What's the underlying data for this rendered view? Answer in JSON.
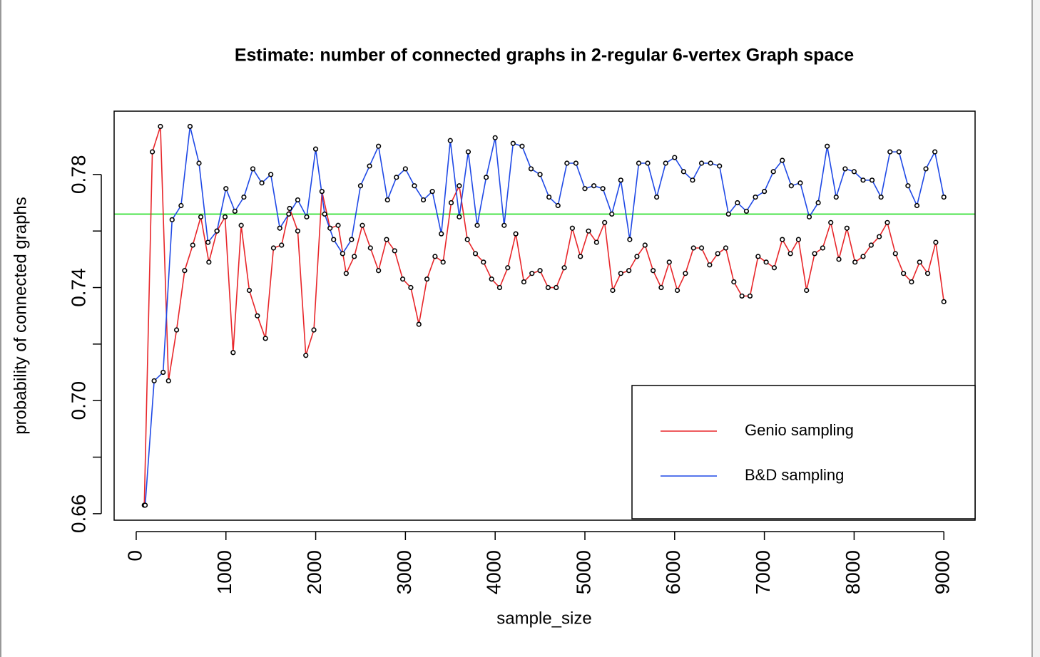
{
  "chart_data": {
    "type": "line",
    "title": "Estimate: number of connected graphs in 2-regular 6-vertex Graph space",
    "x_label": "sample_size",
    "y_label": "probability of connected graphs",
    "xlim": [
      -246,
      9348
    ],
    "ylim": [
      0.6577,
      0.8024
    ],
    "xticks": [
      0,
      1000,
      2000,
      3000,
      4000,
      5000,
      6000,
      7000,
      8000,
      9000
    ],
    "yticks": [
      {
        "value": 0.66,
        "label": "0.66"
      },
      {
        "value": 0.68,
        "label": null
      },
      {
        "value": 0.7,
        "label": "0.70"
      },
      {
        "value": 0.72,
        "label": null
      },
      {
        "value": 0.74,
        "label": "0.74"
      },
      {
        "value": 0.76,
        "label": null
      },
      {
        "value": 0.78,
        "label": "0.78"
      }
    ],
    "hline": {
      "value": 0.766,
      "color": "#22dd22"
    },
    "legend": "bottom-right",
    "series": [
      {
        "name": "Genio sampling",
        "color": "#e8262a",
        "x": [
          90,
          180,
          270,
          360,
          450,
          540,
          630,
          720,
          810,
          900,
          990,
          1080,
          1170,
          1260,
          1350,
          1440,
          1530,
          1620,
          1710,
          1800,
          1890,
          1980,
          2070,
          2160,
          2250,
          2340,
          2430,
          2520,
          2610,
          2700,
          2790,
          2880,
          2970,
          3060,
          3150,
          3240,
          3330,
          3420,
          3510,
          3600,
          3690,
          3780,
          3870,
          3960,
          4050,
          4140,
          4230,
          4320,
          4410,
          4500,
          4590,
          4680,
          4770,
          4860,
          4950,
          5040,
          5130,
          5220,
          5310,
          5400,
          5490,
          5580,
          5670,
          5760,
          5850,
          5940,
          6030,
          6120,
          6210,
          6300,
          6390,
          6480,
          6570,
          6660,
          6750,
          6840,
          6930,
          7020,
          7110,
          7200,
          7290,
          7380,
          7470,
          7560,
          7650,
          7740,
          7830,
          7920,
          8010,
          8100,
          8190,
          8280,
          8370,
          8460,
          8550,
          8640,
          8730,
          8820,
          8910,
          9000
        ],
        "values": [
          0.663,
          0.788,
          0.797,
          0.707,
          0.725,
          0.746,
          0.755,
          0.765,
          0.749,
          0.76,
          0.765,
          0.717,
          0.762,
          0.739,
          0.73,
          0.722,
          0.754,
          0.755,
          0.768,
          0.76,
          0.716,
          0.725,
          0.774,
          0.761,
          0.762,
          0.745,
          0.751,
          0.762,
          0.754,
          0.746,
          0.757,
          0.753,
          0.743,
          0.74,
          0.727,
          0.743,
          0.751,
          0.749,
          0.77,
          0.776,
          0.757,
          0.752,
          0.749,
          0.743,
          0.74,
          0.747,
          0.759,
          0.742,
          0.745,
          0.746,
          0.74,
          0.74,
          0.747,
          0.761,
          0.751,
          0.76,
          0.756,
          0.763,
          0.739,
          0.745,
          0.746,
          0.751,
          0.755,
          0.746,
          0.74,
          0.749,
          0.739,
          0.745,
          0.754,
          0.754,
          0.748,
          0.752,
          0.754,
          0.742,
          0.737,
          0.737,
          0.751,
          0.749,
          0.747,
          0.757,
          0.752,
          0.757,
          0.739,
          0.752,
          0.754,
          0.763,
          0.75,
          0.761,
          0.749,
          0.751,
          0.755,
          0.758,
          0.763,
          0.752,
          0.745,
          0.742,
          0.749,
          0.745,
          0.756,
          0.735
        ]
      },
      {
        "name": "B&D sampling",
        "color": "#1f49e6",
        "x": [
          100,
          200,
          300,
          400,
          500,
          600,
          700,
          800,
          900,
          1000,
          1100,
          1200,
          1300,
          1400,
          1500,
          1600,
          1700,
          1800,
          1900,
          2000,
          2100,
          2200,
          2300,
          2400,
          2500,
          2600,
          2700,
          2800,
          2900,
          3000,
          3100,
          3200,
          3300,
          3400,
          3500,
          3600,
          3700,
          3800,
          3900,
          4000,
          4100,
          4200,
          4300,
          4400,
          4500,
          4600,
          4700,
          4800,
          4900,
          5000,
          5100,
          5200,
          5300,
          5400,
          5500,
          5600,
          5700,
          5800,
          5900,
          6000,
          6100,
          6200,
          6300,
          6400,
          6500,
          6600,
          6700,
          6800,
          6900,
          7000,
          7100,
          7200,
          7300,
          7400,
          7500,
          7600,
          7700,
          7800,
          7900,
          8000,
          8100,
          8200,
          8300,
          8400,
          8500,
          8600,
          8700,
          8800,
          8900,
          9000
        ],
        "values": [
          0.663,
          0.707,
          0.71,
          0.764,
          0.769,
          0.797,
          0.784,
          0.756,
          0.76,
          0.775,
          0.767,
          0.772,
          0.782,
          0.777,
          0.78,
          0.761,
          0.766,
          0.771,
          0.765,
          0.789,
          0.766,
          0.757,
          0.752,
          0.757,
          0.776,
          0.783,
          0.79,
          0.771,
          0.779,
          0.782,
          0.776,
          0.771,
          0.774,
          0.759,
          0.792,
          0.765,
          0.788,
          0.762,
          0.779,
          0.793,
          0.762,
          0.791,
          0.79,
          0.782,
          0.78,
          0.772,
          0.769,
          0.784,
          0.784,
          0.775,
          0.776,
          0.775,
          0.766,
          0.778,
          0.757,
          0.784,
          0.784,
          0.772,
          0.784,
          0.786,
          0.781,
          0.778,
          0.784,
          0.784,
          0.783,
          0.766,
          0.77,
          0.767,
          0.772,
          0.774,
          0.781,
          0.785,
          0.776,
          0.777,
          0.765,
          0.77,
          0.79,
          0.772,
          0.782,
          0.781,
          0.778,
          0.778,
          0.772,
          0.788,
          0.788,
          0.776,
          0.769,
          0.782,
          0.788,
          0.772
        ]
      }
    ]
  }
}
